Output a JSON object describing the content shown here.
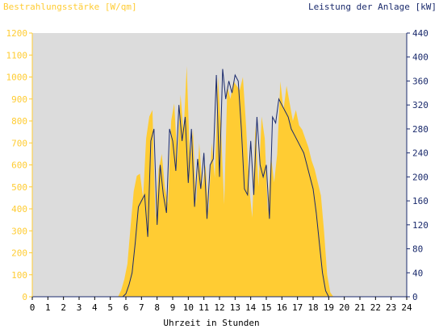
{
  "chart_data": {
    "type": "area",
    "ylabel": "Bestrahlungsstärke [W/qm]",
    "ylabel_right": "Leistung der Anlage [kW]",
    "xlabel": "Uhrzeit in Stunden",
    "xlim": [
      0,
      24
    ],
    "ylim": [
      0,
      1200
    ],
    "ylim_right": [
      0,
      440
    ],
    "x_ticks": [
      "0",
      "1",
      "2",
      "3",
      "4",
      "5",
      "6",
      "7",
      "8",
      "9",
      "10",
      "11",
      "12",
      "13",
      "14",
      "15",
      "16",
      "17",
      "18",
      "19",
      "20",
      "21",
      "22",
      "23",
      "24"
    ],
    "y_ticks": [
      "0",
      "100",
      "200",
      "300",
      "400",
      "500",
      "600",
      "700",
      "800",
      "900",
      "1000",
      "1100",
      "1200"
    ],
    "y_ticks_right": [
      "0",
      "40",
      "80",
      "120",
      "160",
      "200",
      "240",
      "280",
      "320",
      "360",
      "400",
      "440"
    ],
    "grid": false,
    "colors": {
      "irradiance": "#FFCC33",
      "power": "#1A2A6C",
      "plot_background": "#DCDCDC",
      "left_axis_text": "#FFCC33",
      "right_axis_text": "#1A2A6C"
    },
    "series": [
      {
        "name": "Bestrahlungsstärke [W/qm]",
        "axis": "left",
        "x": [
          0,
          5.5,
          5.7,
          5.9,
          6.1,
          6.3,
          6.5,
          6.7,
          6.9,
          7.1,
          7.3,
          7.5,
          7.7,
          7.9,
          8.1,
          8.3,
          8.5,
          8.7,
          8.9,
          9.1,
          9.3,
          9.5,
          9.7,
          9.9,
          10.1,
          10.3,
          10.5,
          10.7,
          10.9,
          11.1,
          11.3,
          11.5,
          11.7,
          11.9,
          12.1,
          12.3,
          12.5,
          12.7,
          12.9,
          13.1,
          13.3,
          13.5,
          13.7,
          13.9,
          14.1,
          14.3,
          14.5,
          14.7,
          14.9,
          15.1,
          15.3,
          15.5,
          15.7,
          15.9,
          16.1,
          16.3,
          16.5,
          16.7,
          16.9,
          17.1,
          17.3,
          17.5,
          17.7,
          17.9,
          18.1,
          18.3,
          18.5,
          18.7,
          18.9,
          19.1,
          19.3,
          19.5,
          24
        ],
        "values": [
          0,
          0,
          30,
          80,
          150,
          320,
          480,
          550,
          560,
          450,
          720,
          820,
          850,
          350,
          580,
          650,
          500,
          420,
          800,
          880,
          620,
          920,
          750,
          1050,
          620,
          760,
          420,
          700,
          500,
          600,
          380,
          700,
          540,
          1000,
          760,
          420,
          960,
          900,
          980,
          960,
          940,
          1000,
          780,
          500,
          360,
          780,
          500,
          820,
          720,
          380,
          640,
          520,
          650,
          980,
          850,
          960,
          880,
          800,
          850,
          780,
          760,
          720,
          680,
          620,
          580,
          520,
          460,
          300,
          100,
          20,
          0,
          0,
          0
        ]
      },
      {
        "name": "Leistung der Anlage [kW]",
        "axis": "right",
        "x": [
          0,
          5.8,
          6.0,
          6.2,
          6.4,
          6.6,
          6.8,
          7.0,
          7.2,
          7.4,
          7.6,
          7.8,
          8.0,
          8.2,
          8.4,
          8.6,
          8.8,
          9.0,
          9.2,
          9.4,
          9.6,
          9.8,
          10.0,
          10.2,
          10.4,
          10.6,
          10.8,
          11.0,
          11.2,
          11.4,
          11.6,
          11.8,
          12.0,
          12.2,
          12.4,
          12.6,
          12.8,
          13.0,
          13.2,
          13.4,
          13.6,
          13.8,
          14.0,
          14.2,
          14.4,
          14.6,
          14.8,
          15.0,
          15.2,
          15.4,
          15.6,
          15.8,
          16.0,
          16.2,
          16.4,
          16.6,
          16.8,
          17.0,
          17.2,
          17.4,
          17.6,
          17.8,
          18.0,
          18.2,
          18.4,
          18.6,
          18.8,
          19.0,
          19.2,
          19.4,
          19.6,
          24
        ],
        "values": [
          0,
          0,
          5,
          20,
          40,
          90,
          150,
          160,
          170,
          100,
          260,
          280,
          120,
          220,
          170,
          140,
          280,
          260,
          210,
          320,
          260,
          300,
          190,
          280,
          150,
          230,
          180,
          240,
          130,
          220,
          230,
          370,
          200,
          380,
          330,
          360,
          340,
          370,
          360,
          280,
          180,
          170,
          260,
          170,
          300,
          220,
          200,
          220,
          130,
          300,
          290,
          330,
          320,
          310,
          300,
          280,
          270,
          260,
          250,
          240,
          220,
          200,
          180,
          140,
          90,
          40,
          10,
          0,
          0,
          0,
          0,
          0
        ]
      }
    ]
  }
}
